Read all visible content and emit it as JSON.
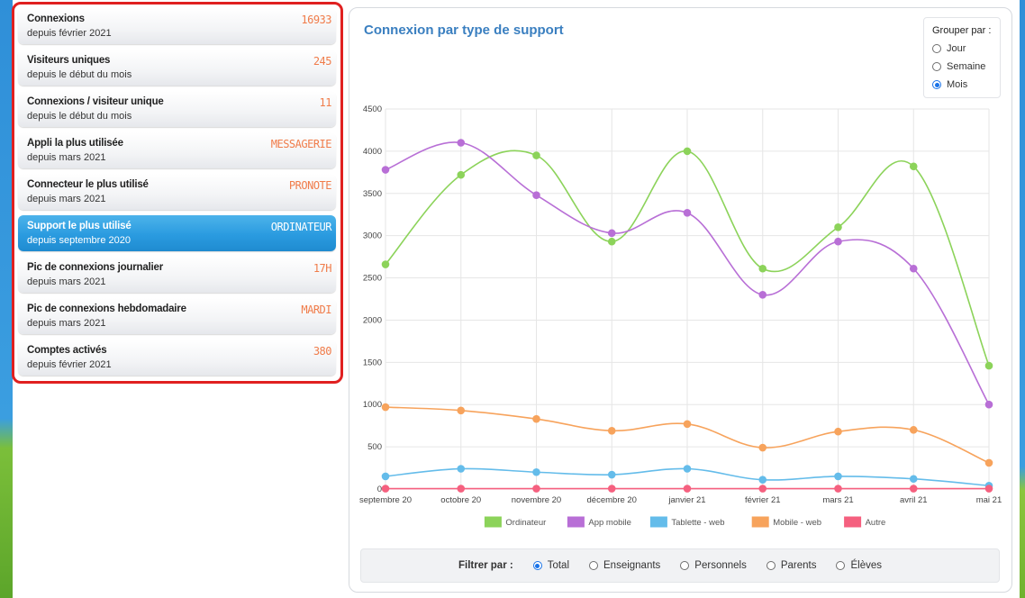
{
  "stats": [
    {
      "title": "Connexions",
      "sub": "depuis février 2021",
      "value": "16933"
    },
    {
      "title": "Visiteurs uniques",
      "sub": "depuis le début du mois",
      "value": "245"
    },
    {
      "title": "Connexions / visiteur unique",
      "sub": "depuis le début du mois",
      "value": "11"
    },
    {
      "title": "Appli la plus utilisée",
      "sub": "depuis mars 2021",
      "value": "MESSAGERIE"
    },
    {
      "title": "Connecteur le plus utilisé",
      "sub": "depuis mars 2021",
      "value": "PRONOTE"
    },
    {
      "title": "Support le plus utilisé",
      "sub": "depuis septembre 2020",
      "value": "ORDINATEUR"
    },
    {
      "title": "Pic de connexions journalier",
      "sub": "depuis mars 2021",
      "value": "17H"
    },
    {
      "title": "Pic de connexions hebdomadaire",
      "sub": "depuis mars 2021",
      "value": "MARDI"
    },
    {
      "title": "Comptes activés",
      "sub": "depuis février 2021",
      "value": "380"
    }
  ],
  "active_stat_index": 5,
  "chart_title": "Connexion par type de support",
  "group_by": {
    "label": "Grouper par :",
    "options": [
      "Jour",
      "Semaine",
      "Mois"
    ],
    "selected": "Mois"
  },
  "filter": {
    "label": "Filtrer par :",
    "options": [
      "Total",
      "Enseignants",
      "Personnels",
      "Parents",
      "Élèves"
    ],
    "selected": "Total"
  },
  "colors": {
    "accent": "#3a7fc0",
    "stat_value": "#f07c4a",
    "active": "#2a9be0",
    "highlight_border": "#e02020"
  },
  "chart_data": {
    "type": "line",
    "title": "",
    "categories": [
      "septembre 20",
      "octobre 20",
      "novembre 20",
      "décembre 20",
      "janvier 21",
      "février 21",
      "mars 21",
      "avril 21",
      "mai 21"
    ],
    "yticks": [
      0,
      500,
      1000,
      1500,
      2000,
      2500,
      3000,
      3500,
      4000,
      4500
    ],
    "ylim": [
      0,
      4500
    ],
    "grid": true,
    "legend_position": "bottom",
    "series": [
      {
        "name": "Ordinateur",
        "color": "#8cd35a",
        "values": [
          2660,
          3720,
          3950,
          2930,
          4000,
          2610,
          3100,
          3820,
          1460
        ]
      },
      {
        "name": "App mobile",
        "color": "#b86fd6",
        "values": [
          3780,
          4100,
          3480,
          3030,
          3270,
          2300,
          2930,
          2610,
          1000
        ]
      },
      {
        "name": "Tablette - web",
        "color": "#64bcea",
        "values": [
          150,
          240,
          200,
          170,
          240,
          110,
          150,
          120,
          40
        ]
      },
      {
        "name": "Mobile - web",
        "color": "#f7a35c",
        "values": [
          970,
          930,
          830,
          690,
          770,
          490,
          680,
          700,
          310
        ]
      },
      {
        "name": "Autre",
        "color": "#f5607f",
        "values": [
          5,
          5,
          5,
          5,
          5,
          5,
          5,
          5,
          5
        ]
      }
    ]
  }
}
